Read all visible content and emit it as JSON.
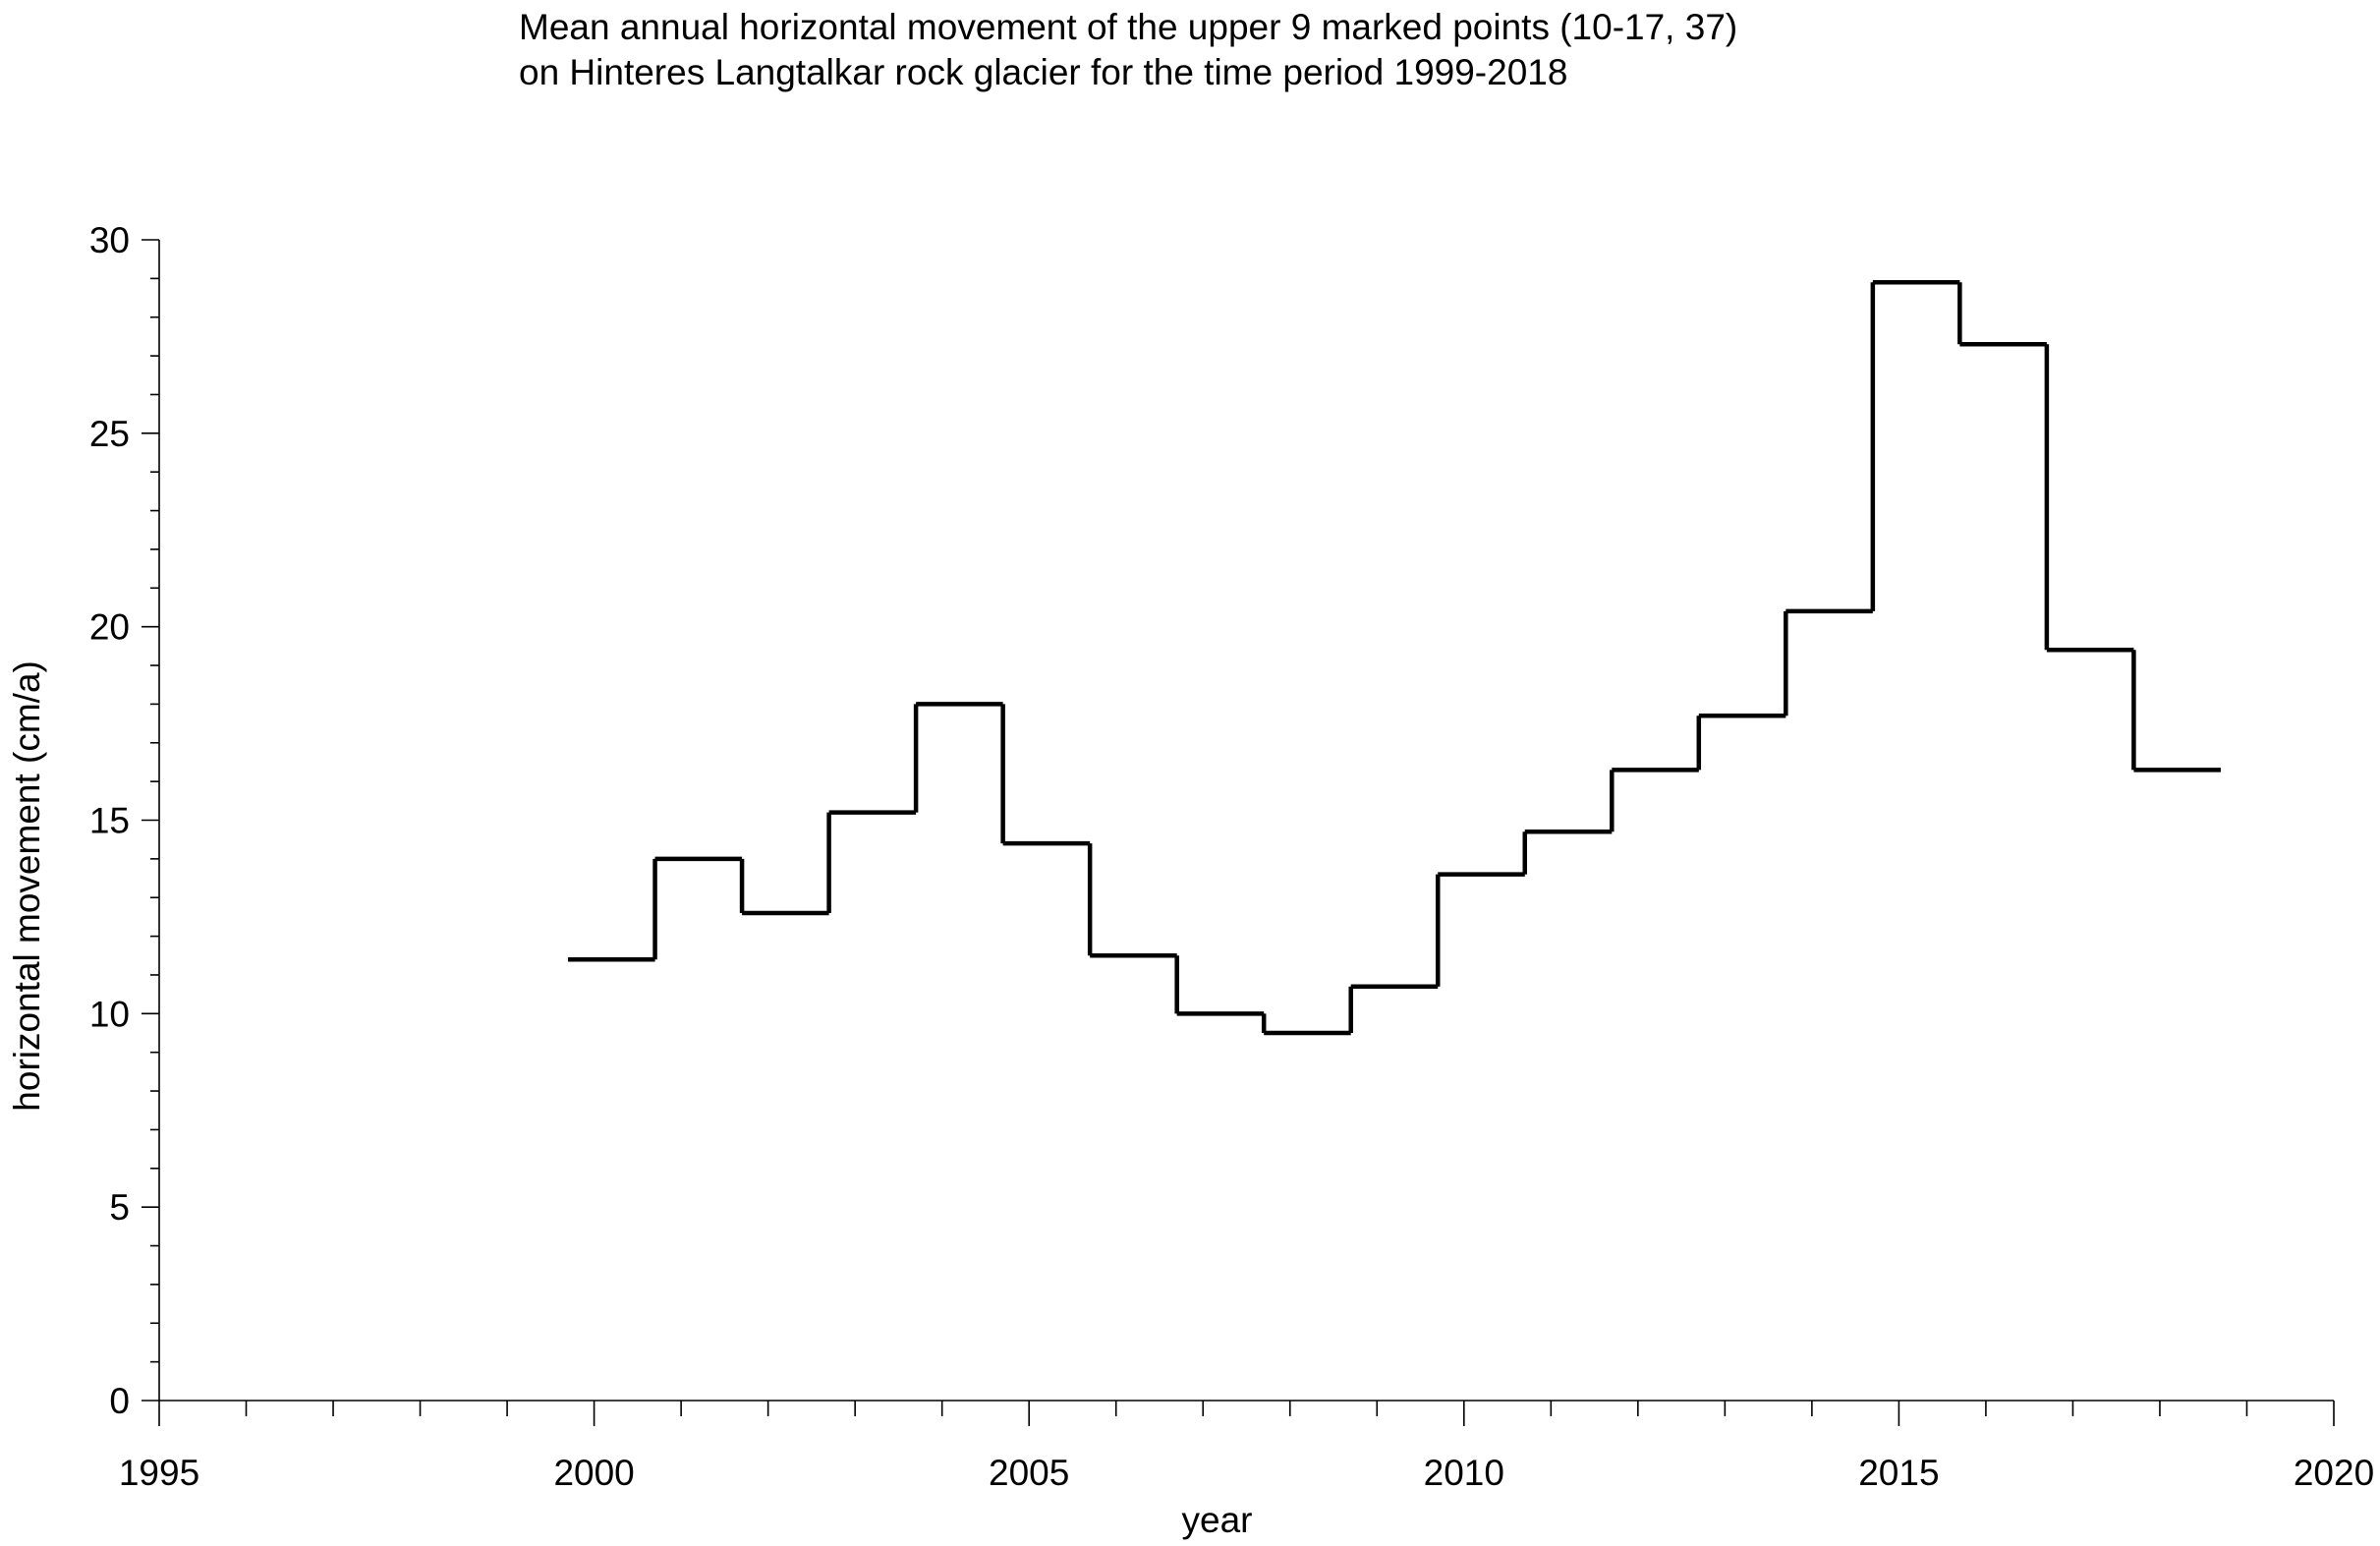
{
  "chart_data": {
    "type": "line",
    "style": "step",
    "title_lines": [
      "Mean annual horizontal movement of the upper 9 marked points (10-17, 37)",
      "on Hinteres Langtalkar rock glacier for the time period 1999-2018"
    ],
    "xlabel": "year",
    "ylabel": "horizontal movement (cm/a)",
    "xlim": [
      1995,
      2020
    ],
    "ylim": [
      0,
      30
    ],
    "x_major_ticks": [
      1995,
      2000,
      2005,
      2010,
      2015,
      2020
    ],
    "x_tick_labels": [
      "1995",
      "2000",
      "2005",
      "2010",
      "2015",
      "2020"
    ],
    "x_minor_step": 1,
    "y_major_ticks": [
      0,
      5,
      10,
      15,
      20,
      25,
      30
    ],
    "y_tick_labels": [
      "0",
      "5",
      "10",
      "15",
      "20",
      "25",
      "30"
    ],
    "y_minor_step": 1,
    "grid": false,
    "series": [
      {
        "periods": [
          {
            "start": 1999.7,
            "end": 2000.7,
            "value": 11.4
          },
          {
            "start": 2000.7,
            "end": 2001.7,
            "value": 14.0
          },
          {
            "start": 2001.7,
            "end": 2002.7,
            "value": 12.6
          },
          {
            "start": 2002.7,
            "end": 2003.7,
            "value": 15.2
          },
          {
            "start": 2003.7,
            "end": 2004.7,
            "value": 18.0
          },
          {
            "start": 2004.7,
            "end": 2005.7,
            "value": 14.4
          },
          {
            "start": 2005.7,
            "end": 2006.7,
            "value": 11.5
          },
          {
            "start": 2006.7,
            "end": 2007.7,
            "value": 10.0
          },
          {
            "start": 2007.7,
            "end": 2008.7,
            "value": 9.5
          },
          {
            "start": 2008.7,
            "end": 2009.7,
            "value": 10.7
          },
          {
            "start": 2009.7,
            "end": 2010.7,
            "value": 13.6
          },
          {
            "start": 2010.7,
            "end": 2011.7,
            "value": 14.7
          },
          {
            "start": 2011.7,
            "end": 2012.7,
            "value": 16.3
          },
          {
            "start": 2012.7,
            "end": 2013.7,
            "value": 17.7
          },
          {
            "start": 2013.7,
            "end": 2014.7,
            "value": 20.4
          },
          {
            "start": 2014.7,
            "end": 2015.7,
            "value": 28.9
          },
          {
            "start": 2015.7,
            "end": 2016.7,
            "value": 27.3
          },
          {
            "start": 2016.7,
            "end": 2017.7,
            "value": 19.4
          },
          {
            "start": 2017.7,
            "end": 2018.7,
            "value": 16.3
          }
        ]
      }
    ]
  }
}
